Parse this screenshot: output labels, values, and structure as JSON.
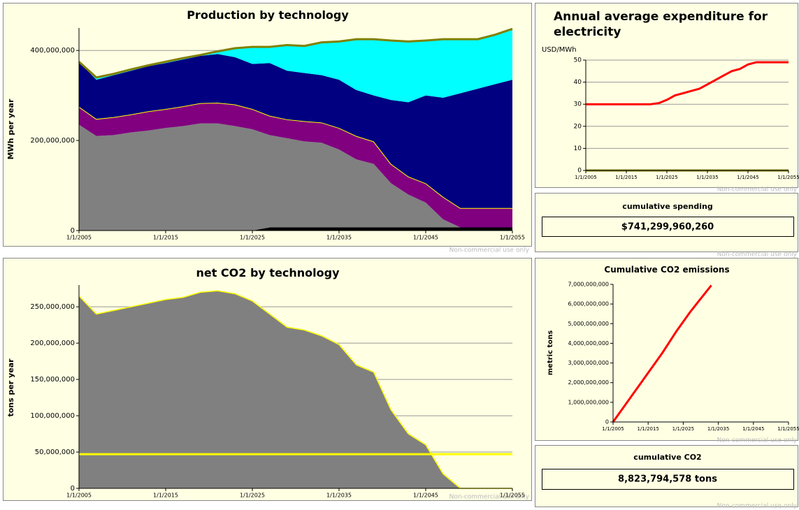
{
  "chart_data": [
    {
      "type": "stacked-area",
      "title": "Production by technology",
      "y_label": "MWh per year",
      "x": [
        2005,
        2007,
        2009,
        2011,
        2013,
        2015,
        2017,
        2019,
        2021,
        2023,
        2025,
        2027,
        2029,
        2031,
        2033,
        2035,
        2037,
        2039,
        2041,
        2043,
        2045,
        2047,
        2049,
        2051,
        2053,
        2055
      ],
      "xlim": [
        2005,
        2055
      ],
      "xticks": [
        {
          "value": 2005,
          "label": "1/1/2005"
        },
        {
          "value": 2015,
          "label": "1/1/2015"
        },
        {
          "value": 2025,
          "label": "1/1/2025"
        },
        {
          "value": 2035,
          "label": "1/1/2035"
        },
        {
          "value": 2045,
          "label": "1/1/2045"
        },
        {
          "value": 2055,
          "label": "1/1/2055"
        }
      ],
      "ylim": [
        0,
        450000000
      ],
      "yticks": [
        0,
        {
          "value": 200000000,
          "label": "200,000,000"
        },
        {
          "value": 400000000,
          "label": "400,000,000"
        }
      ],
      "grid": true,
      "series": [
        {
          "color": "#000000",
          "values": [
            0,
            0,
            0,
            0,
            0,
            0,
            0,
            0,
            0,
            0,
            0,
            7000000,
            7000000,
            7000000,
            7000000,
            7000000,
            7000000,
            7000000,
            7000000,
            7000000,
            7000000,
            7000000,
            7000000,
            7000000,
            7000000,
            7000000
          ]
        },
        {
          "color": "#808080",
          "values": [
            235000000,
            210000000,
            212000000,
            218000000,
            222000000,
            228000000,
            232000000,
            238000000,
            238000000,
            232000000,
            225000000,
            205000000,
            198000000,
            191000000,
            188000000,
            173000000,
            151000000,
            141000000,
            98000000,
            73000000,
            55000000,
            18000000,
            0,
            0,
            0,
            0
          ]
        },
        {
          "color": "#800080",
          "stroke": "#ffff00",
          "values": [
            40000000,
            38000000,
            40000000,
            40000000,
            43000000,
            42000000,
            44000000,
            45000000,
            46000000,
            48000000,
            45000000,
            43000000,
            42000000,
            45000000,
            45000000,
            48000000,
            52000000,
            50000000,
            43000000,
            40000000,
            43000000,
            50000000,
            43000000,
            43000000,
            43000000,
            43000000
          ]
        },
        {
          "color": "#000080",
          "values": [
            100000000,
            87000000,
            93000000,
            97000000,
            100000000,
            102000000,
            104000000,
            105000000,
            108000000,
            105000000,
            100000000,
            117000000,
            108000000,
            107000000,
            105000000,
            107000000,
            102000000,
            102000000,
            142000000,
            165000000,
            195000000,
            220000000,
            255000000,
            265000000,
            275000000,
            285000000
          ]
        },
        {
          "color": "#00ffff",
          "values": [
            0,
            5000000,
            3000000,
            3000000,
            2000000,
            3000000,
            3000000,
            2000000,
            6000000,
            20000000,
            38000000,
            36000000,
            57000000,
            60000000,
            73000000,
            85000000,
            113000000,
            125000000,
            132000000,
            135000000,
            122000000,
            130000000,
            120000000,
            110000000,
            110000000,
            113000000
          ]
        }
      ],
      "line_series": [
        {
          "color": "#808000",
          "values": [
            375000000,
            340000000,
            348000000,
            358000000,
            367000000,
            375000000,
            383000000,
            390000000,
            398000000,
            405000000,
            408000000,
            408000000,
            412000000,
            410000000,
            418000000,
            420000000,
            425000000,
            425000000,
            422000000,
            420000000,
            422000000,
            425000000,
            425000000,
            425000000,
            435000000,
            448000000
          ]
        }
      ]
    },
    {
      "type": "area",
      "title": "net CO2 by technology",
      "y_label": "tons per year",
      "x": [
        2005,
        2007,
        2009,
        2011,
        2013,
        2015,
        2017,
        2019,
        2021,
        2023,
        2025,
        2027,
        2029,
        2031,
        2033,
        2035,
        2037,
        2039,
        2041,
        2043,
        2045,
        2047,
        2049,
        2051,
        2053,
        2055
      ],
      "xlim": [
        2005,
        2055
      ],
      "xticks": [
        {
          "value": 2005,
          "label": "1/1/2005"
        },
        {
          "value": 2015,
          "label": "1/1/2015"
        },
        {
          "value": 2025,
          "label": "1/1/2025"
        },
        {
          "value": 2035,
          "label": "1/1/2035"
        },
        {
          "value": 2045,
          "label": "1/1/2045"
        },
        {
          "value": 2055,
          "label": "1/1/2055"
        }
      ],
      "ylim": [
        0,
        280000000
      ],
      "yticks": [
        0,
        {
          "value": 50000000,
          "label": "50,000,000"
        },
        {
          "value": 100000000,
          "label": "100,000,000"
        },
        {
          "value": 150000000,
          "label": "150,000,000"
        },
        {
          "value": 200000000,
          "label": "200,000,000"
        },
        {
          "value": 250000000,
          "label": "250,000,000"
        }
      ],
      "grid": true,
      "series": [
        {
          "color": "#808080",
          "stroke": "#ffff00",
          "values": [
            265000000,
            240000000,
            245000000,
            250000000,
            255000000,
            260000000,
            263000000,
            270000000,
            272000000,
            268000000,
            258000000,
            240000000,
            222000000,
            218000000,
            210000000,
            198000000,
            170000000,
            160000000,
            108000000,
            75000000,
            60000000,
            20000000,
            0,
            0,
            0,
            0
          ]
        }
      ],
      "reference_line": {
        "value": 47000000,
        "color": "#ffff00"
      }
    },
    {
      "type": "line",
      "title": "Annual average expenditure for electricity",
      "y_label": "USD/MWh",
      "x": [
        2005,
        2007,
        2009,
        2011,
        2013,
        2015,
        2017,
        2019,
        2021,
        2023,
        2025,
        2027,
        2029,
        2031,
        2033,
        2035,
        2037,
        2039,
        2041,
        2043,
        2045,
        2047,
        2049,
        2051,
        2053,
        2055
      ],
      "xlim": [
        2005,
        2055
      ],
      "xticks": [
        {
          "value": 2005,
          "label": "1/1/2005"
        },
        {
          "value": 2015,
          "label": "1/1/2015"
        },
        {
          "value": 2025,
          "label": "1/1/2025"
        },
        {
          "value": 2035,
          "label": "1/1/2035"
        },
        {
          "value": 2045,
          "label": "1/1/2045"
        },
        {
          "value": 2055,
          "label": "1/1/2055"
        }
      ],
      "ylim": [
        0,
        50
      ],
      "yticks": [
        0,
        10,
        20,
        30,
        40,
        50
      ],
      "grid": true,
      "series": [
        {
          "color": "#808000",
          "values": [
            0,
            0,
            0,
            0,
            0,
            0,
            0,
            0,
            0,
            0,
            0,
            0,
            0,
            0,
            0,
            0,
            0,
            0,
            0,
            0,
            0,
            0,
            0,
            0,
            0,
            0
          ]
        },
        {
          "color": "#ff0000",
          "values": [
            30,
            30,
            30,
            30,
            30,
            30,
            30,
            30,
            30,
            30.5,
            32,
            34,
            35,
            36,
            37,
            39,
            41,
            43,
            45,
            46,
            48,
            49,
            49,
            49,
            49,
            49
          ]
        }
      ]
    },
    {
      "type": "line",
      "title": "Cumulative CO2 emissions",
      "y_label": "metric tons",
      "x": [
        2005,
        2007,
        2009,
        2011,
        2013,
        2015,
        2017,
        2019,
        2021,
        2023,
        2025,
        2027,
        2029,
        2031,
        2033,
        2035,
        2037,
        2039,
        2041,
        2043,
        2045,
        2047,
        2049,
        2051,
        2053,
        2055
      ],
      "xlim": [
        2005,
        2055
      ],
      "xticks": [
        {
          "value": 2005,
          "label": "1/1/2005"
        },
        {
          "value": 2015,
          "label": "1/1/2015"
        },
        {
          "value": 2025,
          "label": "1/1/2025"
        },
        {
          "value": 2035,
          "label": "1/1/2035"
        },
        {
          "value": 2045,
          "label": "1/1/2045"
        },
        {
          "value": 2055,
          "label": "1/1/2055"
        }
      ],
      "ylim": [
        0,
        7000000000
      ],
      "yticks": [
        0,
        {
          "value": 1000000000,
          "label": "1,000,000,000"
        },
        {
          "value": 2000000000,
          "label": "2,000,000,000"
        },
        {
          "value": 3000000000,
          "label": "3,000,000,000"
        },
        {
          "value": 4000000000,
          "label": "4,000,000,000"
        },
        {
          "value": 5000000000,
          "label": "5,000,000,000"
        },
        {
          "value": 6000000000,
          "label": "6,000,000,000"
        },
        {
          "value": 7000000000,
          "label": "7,000,000,000"
        }
      ],
      "grid": false,
      "series": [
        {
          "color": "#ff0000",
          "values": [
            0,
            500000000,
            1000000000,
            1500000000,
            2000000000,
            2500000000,
            3000000000,
            3500000000,
            4050000000,
            4600000000,
            5100000000,
            5600000000,
            6050000000,
            6500000000,
            6950000000,
            null,
            null,
            null,
            null,
            null,
            null,
            null,
            null,
            null,
            null,
            null
          ]
        }
      ]
    }
  ],
  "readouts": [
    {
      "title": "cumulative spending",
      "value": "$741,299,960,260"
    },
    {
      "title": "cumulative CO2",
      "value": "8,823,794,578 tons"
    }
  ],
  "watermark": "Non-commercial use only"
}
